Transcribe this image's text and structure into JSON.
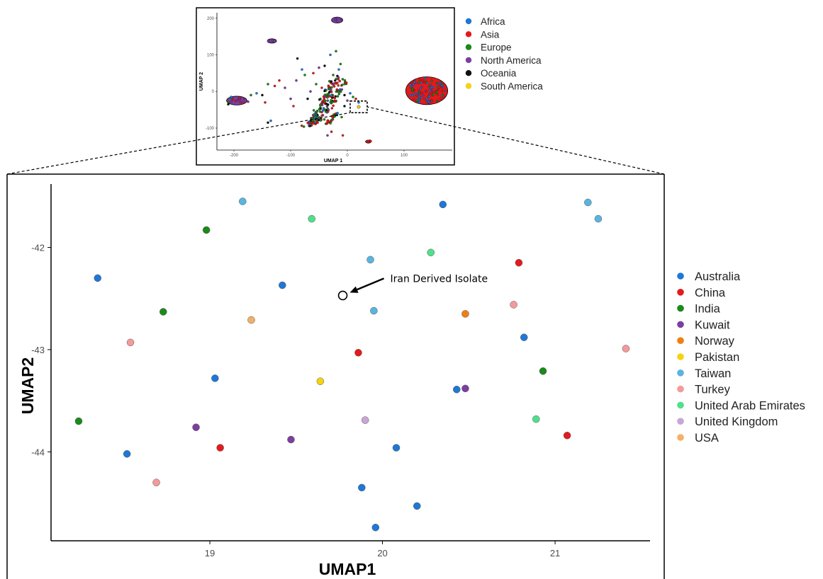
{
  "colors": {
    "Africa": "#1f77d6",
    "Asia": "#e41a1c",
    "Europe": "#1a8a1a",
    "North America": "#7b3fa0",
    "Oceania": "#111111",
    "South America": "#f2d21b",
    "Australia": "#1f77d6",
    "China": "#e41a1c",
    "India": "#1a8a1a",
    "Kuwait": "#7b3fa0",
    "Norway": "#f07f12",
    "Pakistan": "#f5d40f",
    "Taiwan": "#5ab4e0",
    "Turkey": "#f49a9a",
    "United Arab Emirates": "#4fe08a",
    "United Kingdom": "#c9a6d6",
    "USA": "#f5b064"
  },
  "chart_data": [
    {
      "type": "scatter",
      "panel": "overview",
      "xlabel": "UMAP 1",
      "ylabel": "UMAP 2",
      "xticks": [
        -200,
        -100,
        0,
        100
      ],
      "yticks": [
        -100,
        0,
        100,
        200
      ],
      "xlim": [
        -230,
        185
      ],
      "ylim": [
        -160,
        215
      ],
      "legend_position": "right",
      "legend": [
        "Africa",
        "Asia",
        "Europe",
        "North America",
        "Oceania",
        "South America"
      ],
      "highlight_box": {
        "x": [
          5,
          35
        ],
        "y": [
          -58,
          -26
        ]
      },
      "clusters": [
        {
          "name": "main-blob",
          "x": 140,
          "y": 2,
          "rx": 37,
          "ry": 38,
          "colors": [
            "Asia",
            "North America",
            "Europe",
            "Africa"
          ]
        },
        {
          "name": "left-blob",
          "x": -195,
          "y": -25,
          "rx": 18,
          "ry": 12,
          "colors": [
            "North America",
            "Europe",
            "Asia"
          ]
        },
        {
          "name": "top-blob",
          "x": -18,
          "y": 195,
          "rx": 10,
          "ry": 8,
          "colors": [
            "North America"
          ]
        },
        {
          "name": "upper-left-blob",
          "x": -133,
          "y": 138,
          "rx": 8,
          "ry": 6,
          "colors": [
            "North America"
          ]
        },
        {
          "name": "bottom-right-dot",
          "x": 37,
          "y": -137,
          "rx": 5,
          "ry": 4,
          "colors": [
            "Asia"
          ]
        }
      ]
    },
    {
      "type": "scatter",
      "panel": "zoom",
      "xlabel": "UMAP1",
      "ylabel": "UMAP2",
      "xticks": [
        19,
        20,
        21
      ],
      "yticks": [
        -44,
        -43,
        -42
      ],
      "xlim": [
        18.08,
        21.55
      ],
      "ylim": [
        -44.87,
        -41.38
      ],
      "legend_position": "right",
      "legend": [
        "Australia",
        "China",
        "India",
        "Kuwait",
        "Norway",
        "Pakistan",
        "Taiwan",
        "Turkey",
        "United Arab Emirates",
        "United Kingdom",
        "USA"
      ],
      "points": [
        {
          "group": "Australia",
          "x": 18.35,
          "y": -42.3
        },
        {
          "group": "Australia",
          "x": 19.42,
          "y": -42.37
        },
        {
          "group": "Australia",
          "x": 20.35,
          "y": -41.58
        },
        {
          "group": "Australia",
          "x": 20.82,
          "y": -42.88
        },
        {
          "group": "Australia",
          "x": 19.03,
          "y": -43.28
        },
        {
          "group": "Australia",
          "x": 20.43,
          "y": -43.39
        },
        {
          "group": "Australia",
          "x": 18.52,
          "y": -44.02
        },
        {
          "group": "Australia",
          "x": 20.08,
          "y": -43.96
        },
        {
          "group": "Australia",
          "x": 19.88,
          "y": -44.35
        },
        {
          "group": "Australia",
          "x": 20.2,
          "y": -44.53
        },
        {
          "group": "Australia",
          "x": 19.96,
          "y": -44.74
        },
        {
          "group": "China",
          "x": 20.79,
          "y": -42.15
        },
        {
          "group": "China",
          "x": 19.86,
          "y": -43.03
        },
        {
          "group": "China",
          "x": 19.06,
          "y": -43.96
        },
        {
          "group": "China",
          "x": 21.07,
          "y": -43.84
        },
        {
          "group": "India",
          "x": 18.98,
          "y": -41.83
        },
        {
          "group": "India",
          "x": 18.73,
          "y": -42.63
        },
        {
          "group": "India",
          "x": 20.93,
          "y": -43.21
        },
        {
          "group": "India",
          "x": 18.24,
          "y": -43.7
        },
        {
          "group": "Kuwait",
          "x": 20.48,
          "y": -43.38
        },
        {
          "group": "Kuwait",
          "x": 18.92,
          "y": -43.76
        },
        {
          "group": "Kuwait",
          "x": 19.47,
          "y": -43.88
        },
        {
          "group": "Norway",
          "x": 20.48,
          "y": -42.65
        },
        {
          "group": "Pakistan",
          "x": 19.64,
          "y": -43.31
        },
        {
          "group": "Taiwan",
          "x": 19.19,
          "y": -41.55
        },
        {
          "group": "Taiwan",
          "x": 21.19,
          "y": -41.56
        },
        {
          "group": "Taiwan",
          "x": 21.25,
          "y": -41.72
        },
        {
          "group": "Taiwan",
          "x": 19.93,
          "y": -42.12
        },
        {
          "group": "Taiwan",
          "x": 19.95,
          "y": -42.62
        },
        {
          "group": "Turkey",
          "x": 20.76,
          "y": -42.56
        },
        {
          "group": "Turkey",
          "x": 18.54,
          "y": -42.93
        },
        {
          "group": "Turkey",
          "x": 21.41,
          "y": -42.99
        },
        {
          "group": "Turkey",
          "x": 18.69,
          "y": -44.3
        },
        {
          "group": "United Arab Emirates",
          "x": 19.59,
          "y": -41.72
        },
        {
          "group": "United Arab Emirates",
          "x": 20.28,
          "y": -42.05
        },
        {
          "group": "United Arab Emirates",
          "x": 20.89,
          "y": -43.68
        },
        {
          "group": "United Kingdom",
          "x": 19.9,
          "y": -43.69
        },
        {
          "group": "USA",
          "x": 19.24,
          "y": -42.71
        }
      ],
      "annotation": {
        "text": "Iran Derived Isolate",
        "x": 19.77,
        "y": -42.47
      }
    }
  ]
}
